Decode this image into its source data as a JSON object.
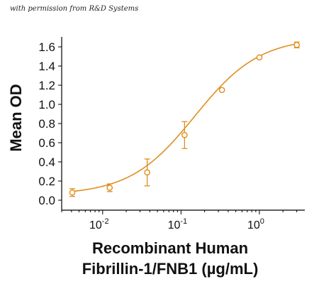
{
  "attribution": "with permission from R&D Systems",
  "chart_data": {
    "type": "scatter",
    "x_scale": "log",
    "ylabel": "Mean OD",
    "xlabel_line1": "Recombinant Human",
    "xlabel_line2": "Fibrillin-1/FNB1 (µg/mL)",
    "xlim": [
      0.003,
      3.8
    ],
    "ylim": [
      0,
      1.7
    ],
    "y_ticks": [
      0.0,
      0.2,
      0.4,
      0.6,
      0.8,
      1.0,
      1.2,
      1.4,
      1.6
    ],
    "y_tick_labels": [
      "0.0",
      "0.2",
      "0.4",
      "0.6",
      "0.8",
      "1.0",
      "1.2",
      "1.4",
      "1.6"
    ],
    "x_ticks": [
      {
        "value": 0.01,
        "base": "10",
        "exp": "-2"
      },
      {
        "value": 0.1,
        "base": "10",
        "exp": "-1"
      },
      {
        "value": 1,
        "base": "10",
        "exp": "0"
      }
    ],
    "grid": false,
    "color": "#E08E1E",
    "series": [
      {
        "x": [
          0.0041,
          0.0123,
          0.037,
          0.111,
          0.333,
          1.0,
          3.0
        ],
        "y": [
          0.08,
          0.13,
          0.29,
          0.68,
          1.15,
          1.49,
          1.62
        ],
        "err": [
          0.04,
          0.04,
          0.14,
          0.14,
          0.01,
          0.01,
          0.03
        ]
      }
    ]
  }
}
